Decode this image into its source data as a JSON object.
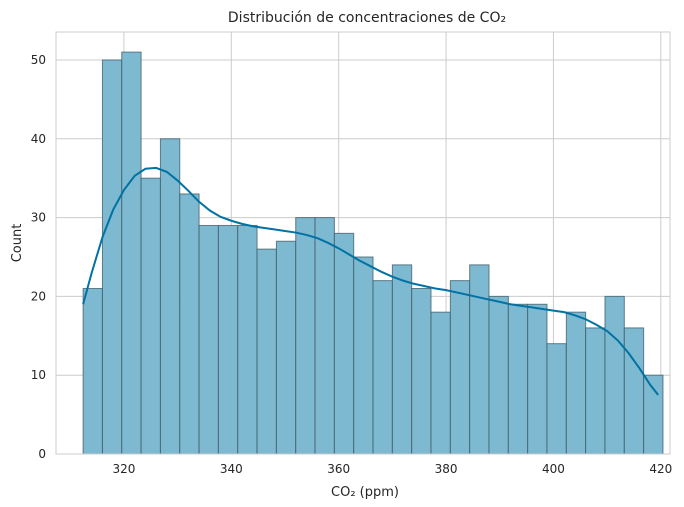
{
  "chart_data": {
    "type": "bar",
    "title": "Distribución de concentraciones de CO₂",
    "xlabel": "CO₂ (ppm)",
    "ylabel": "Count",
    "xlim": [
      307.35,
      421.71
    ],
    "ylim": [
      0,
      53.55
    ],
    "xticks": [
      320,
      340,
      360,
      380,
      400,
      420
    ],
    "yticks": [
      0,
      10,
      20,
      30,
      40,
      50
    ],
    "grid": true,
    "bin_start": 312.4,
    "bin_width": 3.6,
    "counts": [
      21,
      50,
      51,
      35,
      40,
      33,
      29,
      29,
      29,
      26,
      27,
      30,
      30,
      28,
      25,
      22,
      24,
      21,
      18,
      22,
      24,
      20,
      19,
      19,
      14,
      18,
      16,
      20,
      16,
      10
    ],
    "kde": {
      "x": [
        312.4,
        314,
        316,
        318,
        320,
        322,
        324,
        326,
        328,
        330,
        332,
        334,
        336,
        338,
        340,
        342,
        344,
        346,
        348,
        350,
        352,
        354,
        356,
        358,
        360,
        362,
        364,
        366,
        368,
        370,
        372,
        374,
        376,
        378,
        380,
        382,
        384,
        386,
        388,
        390,
        392,
        394,
        396,
        398,
        400,
        402,
        404,
        406,
        408,
        410,
        412,
        414,
        416,
        418,
        419.5
      ],
      "y": [
        19,
        23,
        27.5,
        31,
        33.5,
        35.3,
        36.2,
        36.3,
        35.8,
        34.7,
        33.4,
        32,
        30.9,
        30.1,
        29.6,
        29.2,
        28.9,
        28.7,
        28.5,
        28.3,
        28.1,
        27.8,
        27.4,
        26.8,
        26.1,
        25.3,
        24.5,
        23.8,
        23.1,
        22.5,
        22,
        21.6,
        21.3,
        21,
        20.8,
        20.5,
        20.2,
        19.9,
        19.6,
        19.3,
        19,
        18.8,
        18.6,
        18.4,
        18.2,
        18,
        17.6,
        17.1,
        16.4,
        15.6,
        14.4,
        12.8,
        10.9,
        8.8,
        7.5
      ]
    },
    "colors": {
      "bar_fill": "#7db9d0",
      "bar_edge": "#3d5a66",
      "kde_line": "#0072a3",
      "grid": "#cccccc",
      "frame": "#cccccc"
    }
  }
}
